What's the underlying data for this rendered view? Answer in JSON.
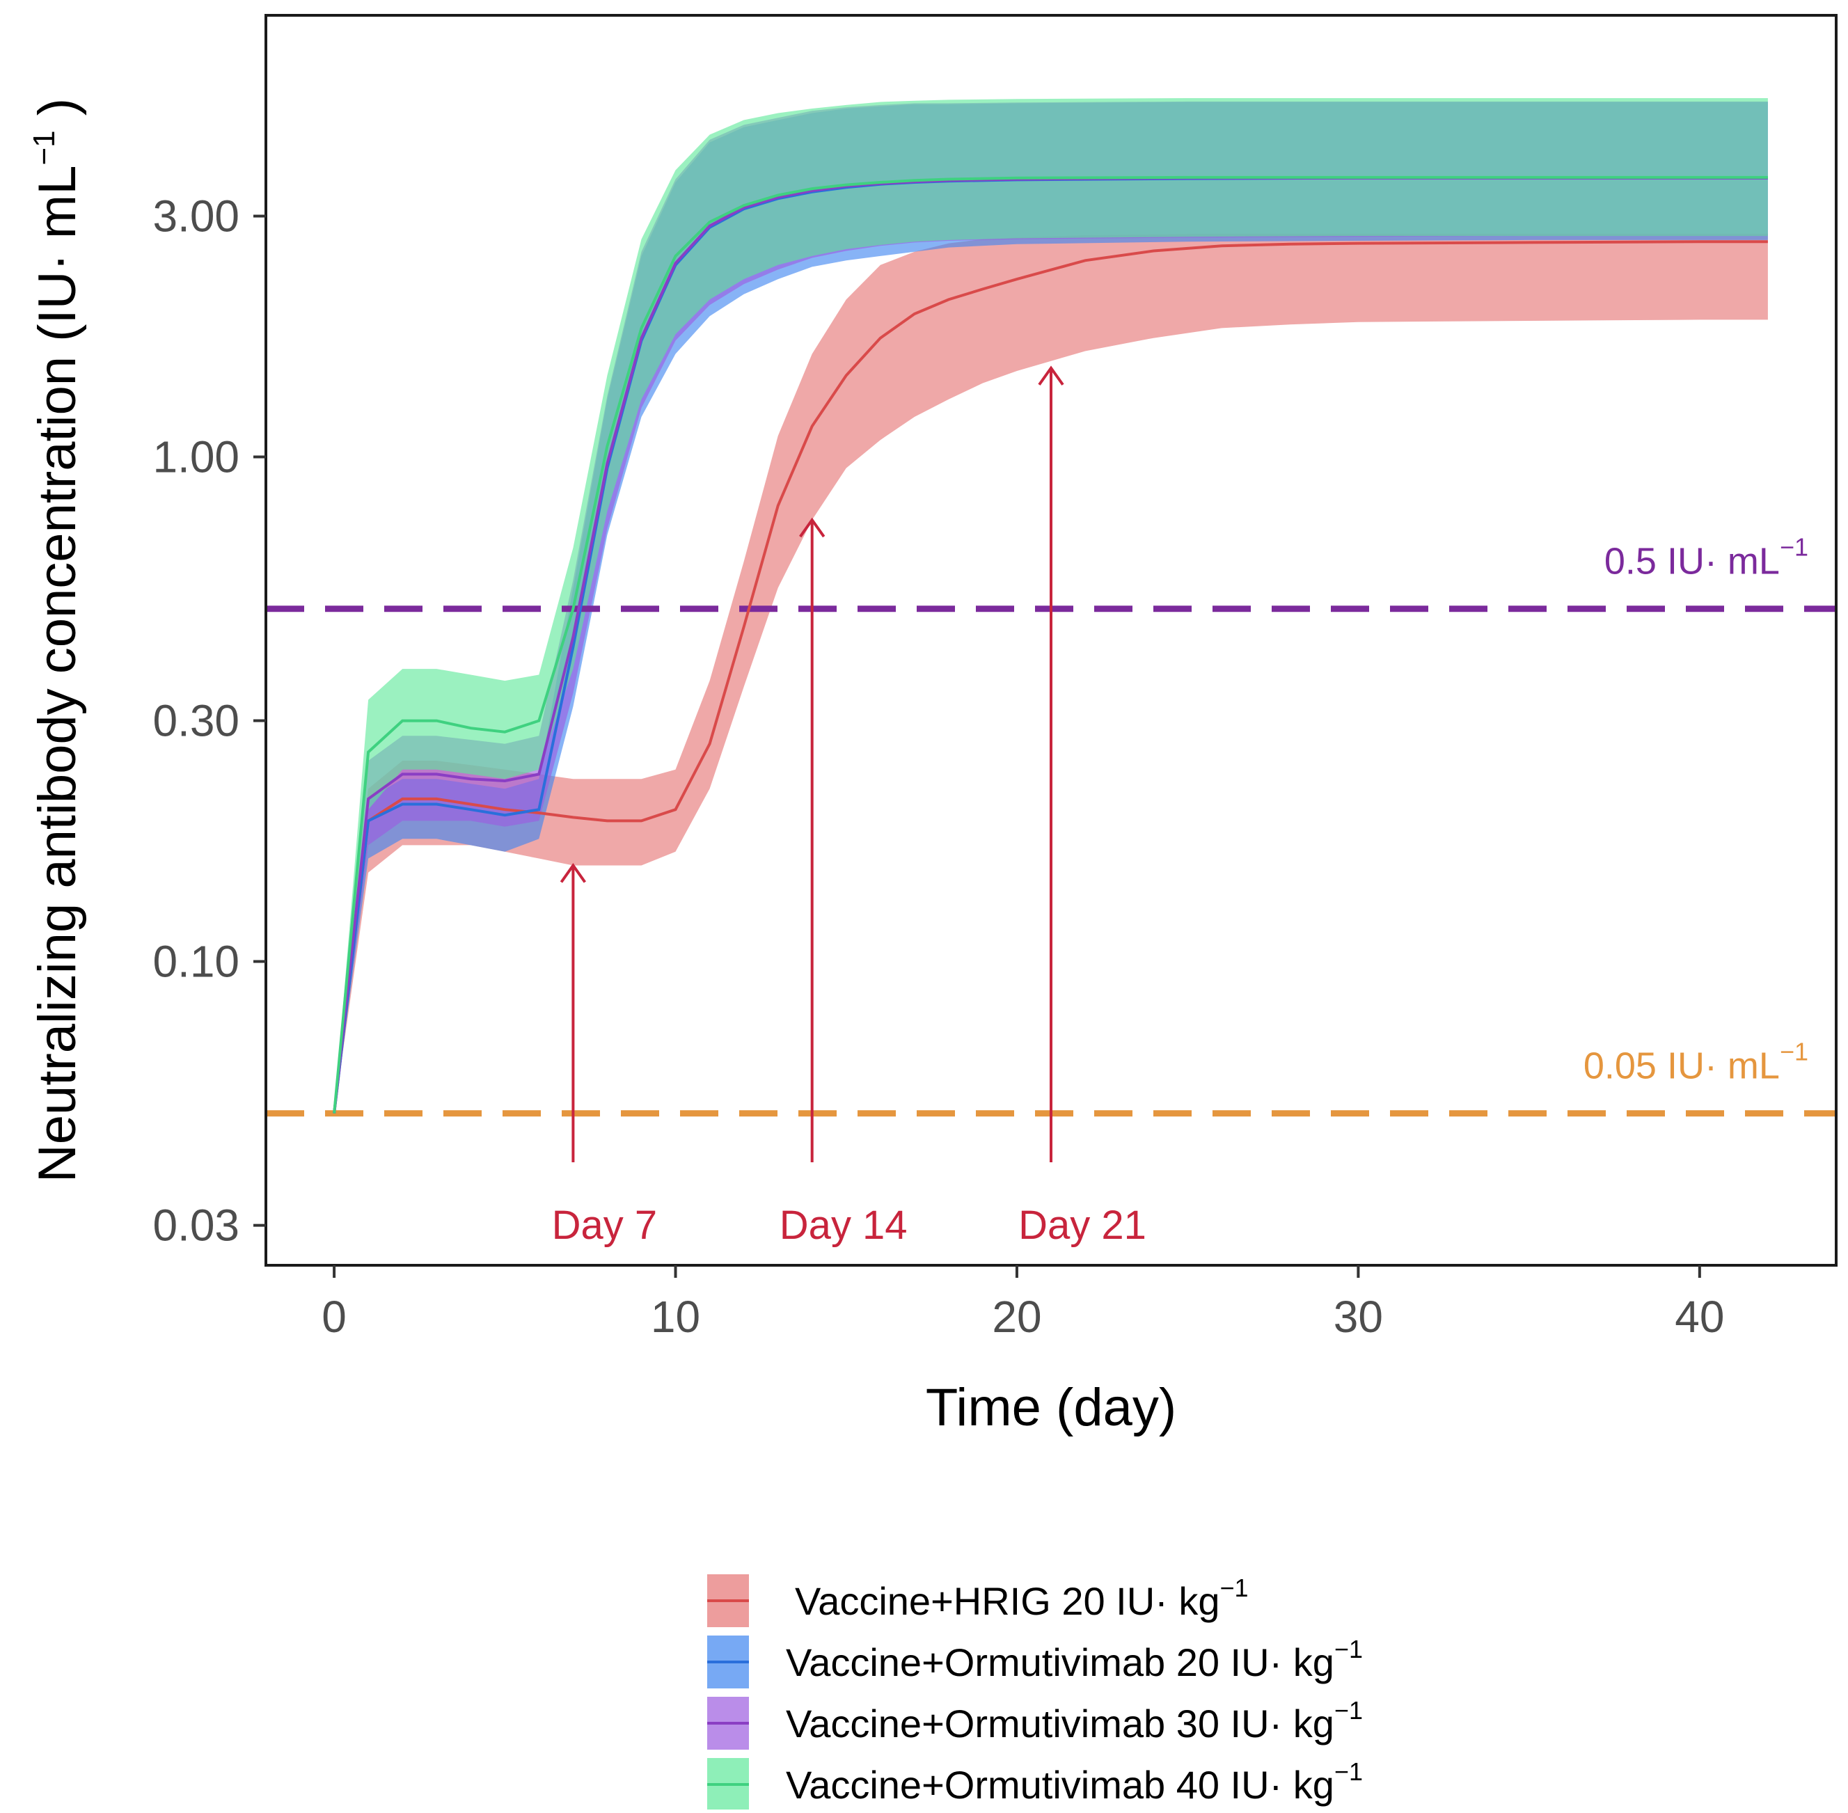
{
  "chart_data": {
    "type": "line",
    "scale_y": "log",
    "xlabel": "Time (day)",
    "ylabel": {
      "main": "Neutralizing antibody concentration (IU· mL",
      "sup": "−1",
      "close": ")"
    },
    "xlim": [
      -2,
      44
    ],
    "ylim": [
      0.025,
      7.5
    ],
    "xticks": [
      0,
      10,
      20,
      30,
      40
    ],
    "xtick_labels": [
      "0",
      "10",
      "20",
      "30",
      "40"
    ],
    "yticks": [
      0.03,
      0.1,
      0.3,
      1,
      3
    ],
    "ytick_labels": [
      "0.03",
      "0.10",
      "0.30",
      "1.00",
      "3.00"
    ],
    "thresholds": [
      {
        "value": 0.5,
        "label": "0.5 IU· mL",
        "sup": "−1",
        "color": "#7b2a9c"
      },
      {
        "value": 0.05,
        "label": "0.05 IU· mL",
        "sup": "−1",
        "color": "#e5963e"
      }
    ],
    "annotations": [
      {
        "x": 7,
        "label": "Day 7",
        "y_tip": 0.155
      },
      {
        "x": 14,
        "label": "Day 14",
        "y_tip": 0.75
      },
      {
        "x": 21,
        "label": "Day 21",
        "y_tip": 1.5
      }
    ],
    "series": [
      {
        "name": "Vaccine+HRIG 20 IU· kg",
        "sup": "−1",
        "line_color": "#d94a4a",
        "fill_color": "#e57373",
        "x": [
          0,
          1,
          2,
          3,
          4,
          5,
          6,
          7,
          8,
          9,
          10,
          11,
          12,
          13,
          14,
          15,
          16,
          17,
          18,
          19,
          20,
          22,
          24,
          26,
          28,
          30,
          35,
          40,
          42
        ],
        "mean": [
          0.05,
          0.19,
          0.21,
          0.21,
          0.205,
          0.2,
          0.197,
          0.193,
          0.19,
          0.19,
          0.2,
          0.27,
          0.46,
          0.8,
          1.15,
          1.45,
          1.72,
          1.92,
          2.05,
          2.15,
          2.25,
          2.45,
          2.56,
          2.62,
          2.64,
          2.65,
          2.66,
          2.67,
          2.67
        ],
        "lower": [
          0.05,
          0.15,
          0.17,
          0.17,
          0.17,
          0.165,
          0.16,
          0.155,
          0.155,
          0.155,
          0.165,
          0.22,
          0.35,
          0.55,
          0.75,
          0.95,
          1.08,
          1.2,
          1.3,
          1.4,
          1.48,
          1.62,
          1.72,
          1.8,
          1.83,
          1.85,
          1.86,
          1.87,
          1.87
        ],
        "upper": [
          0.05,
          0.22,
          0.25,
          0.25,
          0.245,
          0.24,
          0.235,
          0.23,
          0.23,
          0.23,
          0.24,
          0.36,
          0.62,
          1.1,
          1.6,
          2.05,
          2.4,
          2.55,
          2.65,
          2.7,
          2.72,
          2.75,
          2.76,
          2.77,
          2.77,
          2.77,
          2.77,
          2.77,
          2.77
        ]
      },
      {
        "name": "Vaccine+Ormutivimab 20 IU· kg",
        "sup": "−1",
        "line_color": "#2a6fdb",
        "fill_color": "#3d85f0",
        "x": [
          0,
          1,
          2,
          3,
          4,
          5,
          6,
          7,
          8,
          9,
          10,
          11,
          12,
          13,
          14,
          15,
          16,
          17,
          18,
          20,
          25,
          30,
          35,
          40,
          42
        ],
        "mean": [
          0.05,
          0.19,
          0.205,
          0.205,
          0.2,
          0.195,
          0.2,
          0.42,
          0.95,
          1.7,
          2.4,
          2.85,
          3.1,
          3.25,
          3.35,
          3.42,
          3.47,
          3.5,
          3.52,
          3.54,
          3.56,
          3.57,
          3.57,
          3.57,
          3.57
        ],
        "lower": [
          0.05,
          0.16,
          0.175,
          0.175,
          0.17,
          0.165,
          0.175,
          0.32,
          0.7,
          1.2,
          1.6,
          1.9,
          2.1,
          2.25,
          2.38,
          2.45,
          2.5,
          2.55,
          2.6,
          2.64,
          2.67,
          2.68,
          2.69,
          2.69,
          2.69
        ],
        "upper": [
          0.05,
          0.21,
          0.23,
          0.23,
          0.225,
          0.22,
          0.23,
          0.55,
          1.3,
          2.5,
          3.5,
          4.2,
          4.5,
          4.65,
          4.8,
          4.9,
          4.95,
          5.0,
          5.0,
          5.02,
          5.05,
          5.05,
          5.05,
          5.05,
          5.05
        ]
      },
      {
        "name": "Vaccine+Ormutivimab 30 IU· kg",
        "sup": "−1",
        "line_color": "#8a3ec4",
        "fill_color": "#9d5ce0",
        "x": [
          0,
          1,
          2,
          3,
          4,
          5,
          6,
          7,
          8,
          9,
          10,
          11,
          12,
          13,
          14,
          15,
          16,
          17,
          18,
          20,
          25,
          30,
          35,
          40,
          42
        ],
        "mean": [
          0.05,
          0.21,
          0.235,
          0.235,
          0.23,
          0.228,
          0.235,
          0.44,
          0.97,
          1.72,
          2.42,
          2.87,
          3.12,
          3.27,
          3.37,
          3.44,
          3.48,
          3.51,
          3.53,
          3.55,
          3.57,
          3.57,
          3.57,
          3.57,
          3.57
        ],
        "lower": [
          0.05,
          0.17,
          0.19,
          0.19,
          0.19,
          0.185,
          0.19,
          0.34,
          0.72,
          1.25,
          1.7,
          2.0,
          2.2,
          2.35,
          2.48,
          2.56,
          2.62,
          2.66,
          2.68,
          2.7,
          2.72,
          2.73,
          2.74,
          2.74,
          2.74
        ],
        "upper": [
          0.05,
          0.25,
          0.28,
          0.28,
          0.275,
          0.27,
          0.28,
          0.57,
          1.32,
          2.55,
          3.55,
          4.25,
          4.55,
          4.7,
          4.85,
          4.93,
          4.98,
          5.02,
          5.02,
          5.04,
          5.06,
          5.06,
          5.06,
          5.06,
          5.06
        ]
      },
      {
        "name": "Vaccine+Ormutivimab 40 IU· kg",
        "sup": "−1",
        "line_color": "#3fd180",
        "fill_color": "#5ee89a",
        "x": [
          0,
          1,
          2,
          3,
          4,
          5,
          6,
          7,
          8,
          9,
          10,
          11,
          12,
          13,
          14,
          15,
          16,
          17,
          18,
          20,
          25,
          30,
          35,
          40,
          42
        ],
        "mean": [
          0.05,
          0.26,
          0.3,
          0.3,
          0.29,
          0.285,
          0.3,
          0.5,
          1.05,
          1.8,
          2.5,
          2.92,
          3.15,
          3.3,
          3.4,
          3.46,
          3.5,
          3.53,
          3.55,
          3.57,
          3.58,
          3.58,
          3.58,
          3.58,
          3.58
        ],
        "lower": [
          0.05,
          0.2,
          0.24,
          0.24,
          0.235,
          0.23,
          0.24,
          0.38,
          0.78,
          1.3,
          1.75,
          2.05,
          2.25,
          2.4,
          2.5,
          2.58,
          2.63,
          2.67,
          2.69,
          2.71,
          2.73,
          2.74,
          2.74,
          2.74,
          2.74
        ],
        "upper": [
          0.05,
          0.33,
          0.38,
          0.38,
          0.37,
          0.36,
          0.37,
          0.66,
          1.45,
          2.7,
          3.7,
          4.35,
          4.65,
          4.8,
          4.9,
          4.98,
          5.05,
          5.08,
          5.1,
          5.12,
          5.14,
          5.14,
          5.14,
          5.14,
          5.14
        ]
      }
    ]
  }
}
